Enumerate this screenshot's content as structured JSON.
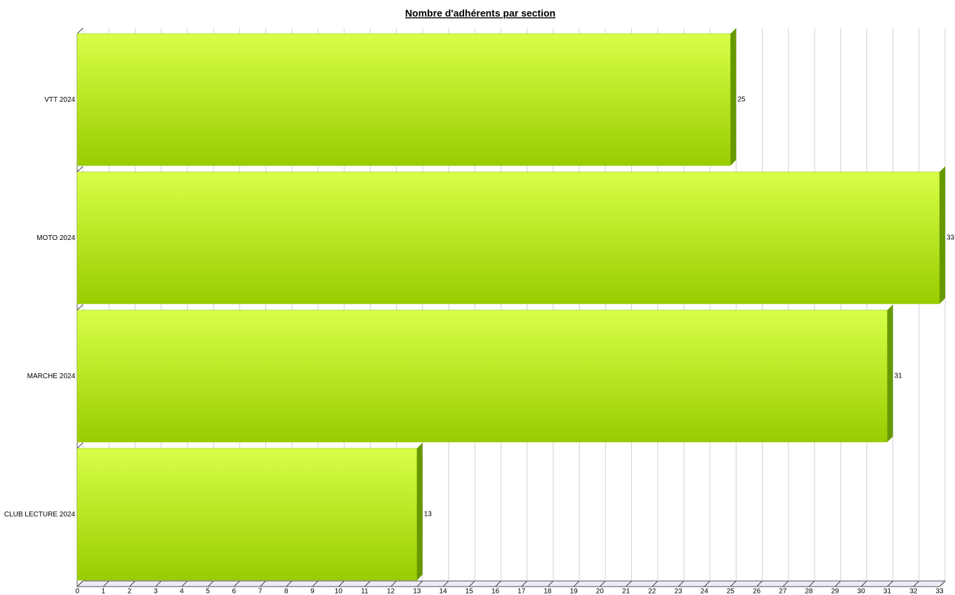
{
  "chart_data": {
    "type": "bar",
    "orientation": "horizontal",
    "title": "Nombre d'adhérents par section",
    "categories": [
      "VTT 2024",
      "MOTO 2024",
      "MARCHE 2024",
      "CLUB LECTURE 2024"
    ],
    "values": [
      25,
      33,
      31,
      13
    ],
    "color": "#b5e61d",
    "xlim": [
      0,
      33
    ],
    "xticks": [
      0,
      1,
      2,
      3,
      4,
      5,
      6,
      7,
      8,
      9,
      10,
      11,
      12,
      13,
      14,
      15,
      16,
      17,
      18,
      19,
      20,
      21,
      22,
      23,
      24,
      25,
      26,
      27,
      28,
      29,
      30,
      31,
      32,
      33
    ],
    "grid": true
  }
}
